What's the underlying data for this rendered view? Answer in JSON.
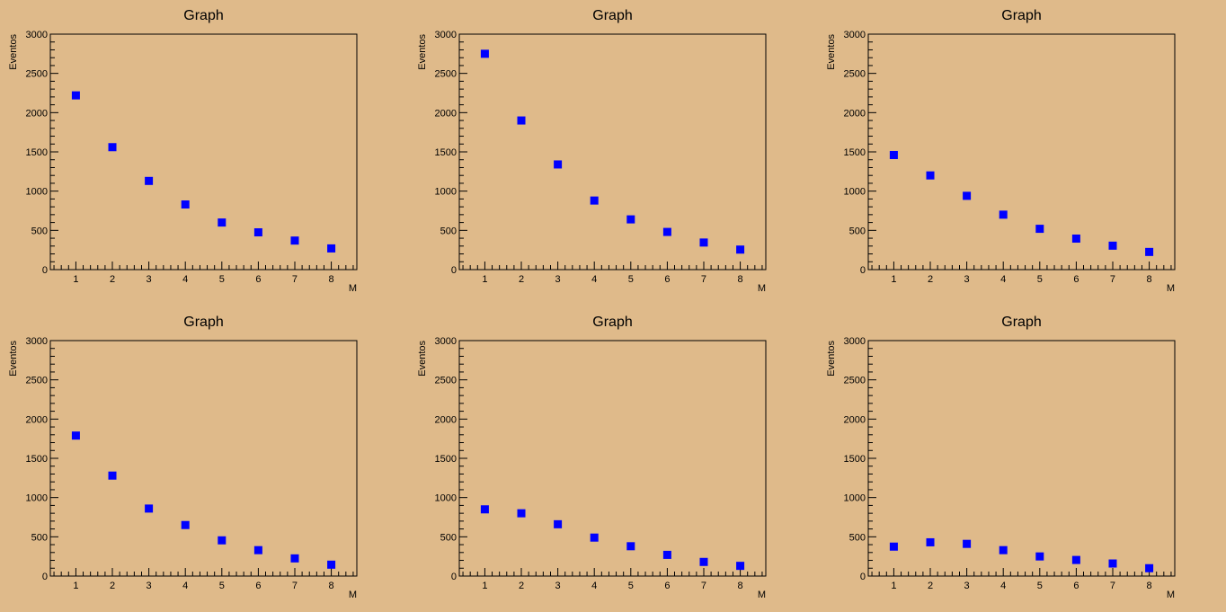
{
  "colors": {
    "background": "#dfba8a",
    "marker": "#0000ff"
  },
  "chart_data": [
    {
      "type": "scatter",
      "title": "Graph",
      "xlabel": "M",
      "ylabel": "Eventos",
      "xlim": [
        0.3,
        8.7
      ],
      "ylim": [
        0,
        3000
      ],
      "xticks": [
        1,
        2,
        3,
        4,
        5,
        6,
        7,
        8
      ],
      "yticks": [
        0,
        500,
        1000,
        1500,
        2000,
        2500,
        3000
      ],
      "x": [
        1,
        2,
        3,
        4,
        5,
        6,
        7,
        8
      ],
      "y": [
        2220,
        1560,
        1130,
        830,
        600,
        475,
        370,
        270
      ]
    },
    {
      "type": "scatter",
      "title": "Graph",
      "xlabel": "M",
      "ylabel": "Eventos",
      "xlim": [
        0.3,
        8.7
      ],
      "ylim": [
        0,
        3000
      ],
      "xticks": [
        1,
        2,
        3,
        4,
        5,
        6,
        7,
        8
      ],
      "yticks": [
        0,
        500,
        1000,
        1500,
        2000,
        2500,
        3000
      ],
      "x": [
        1,
        2,
        3,
        4,
        5,
        6,
        7,
        8
      ],
      "y": [
        2750,
        1900,
        1340,
        880,
        640,
        480,
        345,
        255
      ]
    },
    {
      "type": "scatter",
      "title": "Graph",
      "xlabel": "M",
      "ylabel": "Eventos",
      "xlim": [
        0.3,
        8.7
      ],
      "ylim": [
        0,
        3000
      ],
      "xticks": [
        1,
        2,
        3,
        4,
        5,
        6,
        7,
        8
      ],
      "yticks": [
        0,
        500,
        1000,
        1500,
        2000,
        2500,
        3000
      ],
      "x": [
        1,
        2,
        3,
        4,
        5,
        6,
        7,
        8
      ],
      "y": [
        1460,
        1200,
        940,
        700,
        520,
        395,
        305,
        225
      ]
    },
    {
      "type": "scatter",
      "title": "Graph",
      "xlabel": "M",
      "ylabel": "Eventos",
      "xlim": [
        0.3,
        8.7
      ],
      "ylim": [
        0,
        3000
      ],
      "xticks": [
        1,
        2,
        3,
        4,
        5,
        6,
        7,
        8
      ],
      "yticks": [
        0,
        500,
        1000,
        1500,
        2000,
        2500,
        3000
      ],
      "x": [
        1,
        2,
        3,
        4,
        5,
        6,
        7,
        8
      ],
      "y": [
        1790,
        1280,
        860,
        650,
        455,
        330,
        225,
        145
      ]
    },
    {
      "type": "scatter",
      "title": "Graph",
      "xlabel": "M",
      "ylabel": "Eventos",
      "xlim": [
        0.3,
        8.7
      ],
      "ylim": [
        0,
        3000
      ],
      "xticks": [
        1,
        2,
        3,
        4,
        5,
        6,
        7,
        8
      ],
      "yticks": [
        0,
        500,
        1000,
        1500,
        2000,
        2500,
        3000
      ],
      "x": [
        1,
        2,
        3,
        4,
        5,
        6,
        7,
        8
      ],
      "y": [
        850,
        800,
        660,
        490,
        380,
        270,
        180,
        130
      ]
    },
    {
      "type": "scatter",
      "title": "Graph",
      "xlabel": "M",
      "ylabel": "Eventos",
      "xlim": [
        0.3,
        8.7
      ],
      "ylim": [
        0,
        3000
      ],
      "xticks": [
        1,
        2,
        3,
        4,
        5,
        6,
        7,
        8
      ],
      "yticks": [
        0,
        500,
        1000,
        1500,
        2000,
        2500,
        3000
      ],
      "x": [
        1,
        2,
        3,
        4,
        5,
        6,
        7,
        8
      ],
      "y": [
        375,
        430,
        410,
        330,
        250,
        205,
        160,
        100
      ]
    }
  ]
}
